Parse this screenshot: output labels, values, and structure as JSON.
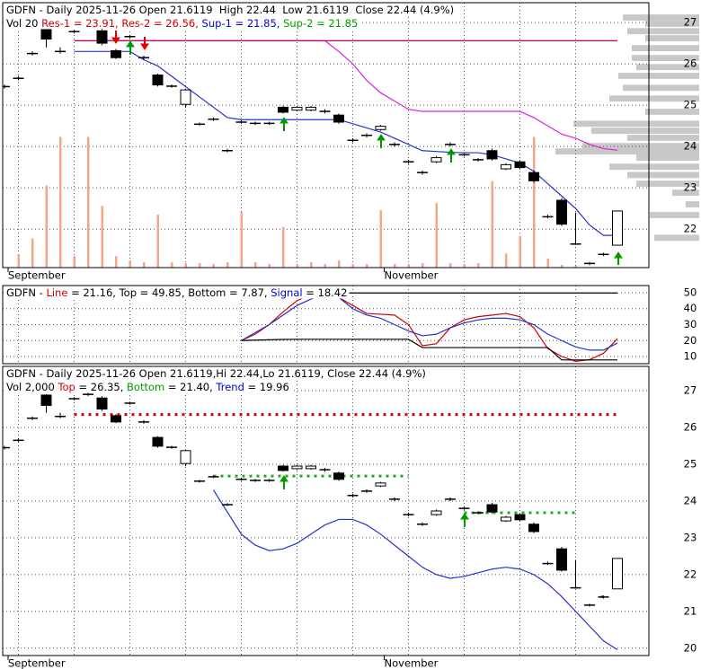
{
  "chart_data": [
    {
      "type": "candlestick",
      "legend": [
        [
          {
            "text": "GDFN - Daily 2025-11-26 Open 21.6119  High 22.44  Low 21.6119  Close 22.44 (4.9%)",
            "color": "#000000"
          }
        ],
        [
          {
            "text": "Vol 20 ",
            "color": "#000000"
          },
          {
            "text": "Res-1 = 23.91, ",
            "color": "#cc0000"
          },
          {
            "text": "Res-2 = 26.56, ",
            "color": "#cc0000"
          },
          {
            "text": "Sup-1 = 21.85, ",
            "color": "#0000cc"
          },
          {
            "text": "Sup-2 = 21.85",
            "color": "#009900"
          }
        ]
      ],
      "categories": [
        "September",
        null,
        null,
        null,
        null,
        null,
        null,
        null,
        null,
        null,
        null,
        null,
        null,
        null,
        null,
        null,
        null,
        null,
        null,
        null,
        null,
        null,
        null,
        null,
        null,
        null,
        null,
        "November",
        null,
        null,
        null,
        null,
        null,
        null,
        null,
        null,
        null,
        null,
        null,
        null,
        null,
        null,
        null,
        null,
        null
      ],
      "open": [
        25.45,
        25.65,
        26.25,
        26.88,
        26.3,
        26.78,
        26.9,
        26.8,
        26.32,
        26.66,
        26.15,
        25.73,
        25.46,
        25.02,
        24.54,
        24.66,
        23.9,
        24.59,
        24.56,
        24.56,
        24.95,
        24.88,
        24.88,
        24.85,
        24.76,
        24.15,
        24.27,
        24.41,
        24.05,
        23.63,
        23.37,
        23.63,
        24.05,
        23.8,
        23.68,
        23.9,
        23.46,
        23.63,
        23.37,
        22.3,
        22.7,
        21.64,
        21.17,
        21.39,
        21.6119
      ],
      "high": [
        25.5,
        25.7,
        26.3,
        26.9,
        26.4,
        26.82,
        26.95,
        26.85,
        26.36,
        26.7,
        26.2,
        25.76,
        25.5,
        25.4,
        24.58,
        24.7,
        23.94,
        24.63,
        24.6,
        24.6,
        24.98,
        24.98,
        24.98,
        24.9,
        24.8,
        24.2,
        24.32,
        24.52,
        24.1,
        23.68,
        23.42,
        23.77,
        24.1,
        23.84,
        23.72,
        23.95,
        23.6,
        23.67,
        23.42,
        22.35,
        22.75,
        22.4,
        21.21,
        21.43,
        22.44
      ],
      "low": [
        25.4,
        25.6,
        26.2,
        26.4,
        26.25,
        26.74,
        26.85,
        26.45,
        26.12,
        26.62,
        26.1,
        25.45,
        25.42,
        24.95,
        24.5,
        24.62,
        23.86,
        24.55,
        24.52,
        24.52,
        24.8,
        24.85,
        24.85,
        24.8,
        24.55,
        24.1,
        24.22,
        24.38,
        24.0,
        23.58,
        23.32,
        23.6,
        24.0,
        23.76,
        23.64,
        23.66,
        23.43,
        23.45,
        23.13,
        22.26,
        22.08,
        21.62,
        21.13,
        21.35,
        21.6119
      ],
      "close": [
        25.45,
        25.65,
        26.25,
        26.6,
        26.3,
        26.78,
        26.9,
        26.5,
        26.15,
        26.66,
        26.15,
        25.49,
        25.46,
        25.37,
        24.54,
        24.66,
        23.9,
        24.59,
        24.56,
        24.56,
        24.83,
        24.95,
        24.95,
        24.85,
        24.59,
        24.15,
        24.27,
        24.49,
        24.05,
        23.63,
        23.37,
        23.73,
        24.05,
        23.8,
        23.68,
        23.7,
        23.56,
        23.49,
        23.17,
        22.3,
        22.12,
        21.64,
        21.17,
        21.39,
        22.44
      ],
      "volume": [
        0,
        15,
        33,
        93,
        148,
        13,
        148,
        70,
        13,
        8,
        6,
        60,
        6,
        5,
        5,
        4,
        6,
        63,
        6,
        4,
        46,
        4,
        6,
        4,
        8,
        4,
        4,
        65,
        4,
        4,
        5,
        73,
        5,
        4,
        5,
        98,
        16,
        36,
        148,
        10,
        3,
        2,
        0,
        0,
        0
      ],
      "vlim": [
        0,
        300
      ],
      "volume_color": "#f4a58a",
      "series": [
        {
          "color": "#2233cc",
          "values": [
            null,
            null,
            null,
            null,
            null,
            26.3,
            26.3,
            26.3,
            26.3,
            26.3,
            26.1,
            25.95,
            25.7,
            25.45,
            25.2,
            24.95,
            24.7,
            24.65,
            24.65,
            24.65,
            24.65,
            24.65,
            24.65,
            24.65,
            24.65,
            24.55,
            24.45,
            24.35,
            24.2,
            24.05,
            23.9,
            23.88,
            23.86,
            23.85,
            23.85,
            23.8,
            23.7,
            23.6,
            23.4,
            23.1,
            22.8,
            22.5,
            22.1,
            21.85,
            21.85
          ]
        },
        {
          "name": "Res-1",
          "color": "#dd22dd",
          "values": [
            null,
            null,
            null,
            null,
            null,
            26.56,
            26.56,
            26.56,
            26.56,
            26.56,
            26.56,
            26.56,
            26.56,
            26.56,
            26.56,
            26.56,
            26.56,
            26.56,
            26.56,
            26.56,
            26.56,
            26.56,
            26.56,
            26.56,
            26.3,
            26.0,
            25.6,
            25.3,
            25.1,
            24.9,
            24.85,
            24.85,
            24.85,
            24.85,
            24.85,
            24.85,
            24.85,
            24.85,
            24.7,
            24.5,
            24.3,
            24.2,
            24.05,
            23.95,
            23.91
          ]
        },
        {
          "name": "Res-2",
          "color": "#cc0055",
          "values": [
            null,
            null,
            null,
            null,
            null,
            26.56,
            26.56,
            26.56,
            26.56,
            26.56,
            26.56,
            26.56,
            26.56,
            26.56,
            26.56,
            26.56,
            26.56,
            26.56,
            26.56,
            26.56,
            26.56,
            26.56,
            26.56,
            26.56,
            26.56,
            26.56,
            26.56,
            26.56,
            26.56,
            26.56,
            26.56,
            26.56,
            26.56,
            26.56,
            26.56,
            26.56,
            26.56,
            26.56,
            26.56,
            26.56,
            26.56,
            26.56,
            26.56,
            26.56,
            26.56
          ]
        }
      ],
      "profile": {
        "color": "#c8c8c8",
        "prices": [
          27.11,
          26.96,
          26.78,
          26.61,
          26.37,
          26.13,
          25.91,
          25.7,
          25.41,
          25.15,
          24.83,
          24.54,
          24.37,
          24.2,
          24.0,
          23.87,
          23.72,
          23.5,
          23.3,
          23.09,
          22.87,
          22.59,
          22.33,
          21.78
        ],
        "values": [
          85,
          60,
          80,
          60,
          75,
          75,
          70,
          90,
          85,
          100,
          60,
          140,
          120,
          80,
          130,
          160,
          70,
          100,
          80,
          70,
          30,
          15,
          55,
          50
        ]
      },
      "ylim": [
        21.07,
        27.48
      ],
      "yticks": [
        22,
        23,
        24,
        25,
        26,
        27
      ],
      "grid": true
    },
    {
      "type": "line",
      "legend": [
        [
          {
            "text": "GDFN - ",
            "color": "#000000"
          },
          {
            "text": "Line",
            "color": "#cc0000"
          },
          {
            "text": " = 21.16, Top = 49.85, Bottom = 7.87, ",
            "color": "#000000"
          },
          {
            "text": "Signal",
            "color": "#0000cc"
          },
          {
            "text": " = 18.42",
            "color": "#000000"
          }
        ]
      ],
      "series": [
        {
          "name": "Line",
          "color": "#cc0000",
          "values": [
            null,
            null,
            null,
            null,
            null,
            null,
            null,
            null,
            null,
            null,
            null,
            null,
            null,
            null,
            null,
            null,
            null,
            20,
            24,
            30,
            38,
            45,
            49,
            50,
            47,
            42,
            37,
            36.5,
            36,
            30,
            16.8,
            18,
            28,
            33,
            35,
            36,
            37,
            35,
            28,
            15,
            10,
            7,
            8,
            12,
            21.16
          ]
        },
        {
          "name": "Signal",
          "color": "#2233cc",
          "values": [
            null,
            null,
            null,
            null,
            null,
            null,
            null,
            null,
            null,
            null,
            null,
            null,
            null,
            null,
            null,
            null,
            null,
            20,
            25,
            30,
            36,
            42,
            46,
            49,
            47,
            40,
            36,
            34,
            30,
            26,
            23,
            24,
            28,
            31,
            33,
            34,
            34,
            33,
            30,
            24,
            20,
            16,
            14,
            14,
            18.42
          ]
        },
        {
          "name": "Top",
          "color": "#000000",
          "values": [
            null,
            null,
            null,
            null,
            null,
            null,
            null,
            null,
            null,
            null,
            null,
            null,
            null,
            null,
            null,
            null,
            null,
            null,
            null,
            null,
            null,
            null,
            49.85,
            49.85,
            49.85,
            49.85,
            49.85,
            49.85,
            49.85,
            49.85,
            49.85,
            49.85,
            49.85,
            49.85,
            49.85,
            49.85,
            49.85,
            49.85,
            49.85,
            49.85,
            49.85,
            49.85,
            49.85,
            49.85,
            49.85
          ]
        },
        {
          "name": "Bottom",
          "color": "#000000",
          "values": [
            null,
            null,
            null,
            null,
            null,
            null,
            null,
            null,
            null,
            null,
            null,
            null,
            null,
            null,
            null,
            null,
            null,
            20,
            20.3,
            20.5,
            20.7,
            20.8,
            20.8,
            20.8,
            20.8,
            20.8,
            20.8,
            20.8,
            20.8,
            20.8,
            15.6,
            15.6,
            15.6,
            15.6,
            15.6,
            15.6,
            15.6,
            15.6,
            15.6,
            15.6,
            7.87,
            7.87,
            7.87,
            7.87,
            7.87
          ]
        }
      ],
      "ylim": [
        5.5,
        54.5
      ],
      "yticks": [
        10,
        20,
        30,
        40,
        50
      ],
      "grid": true
    },
    {
      "type": "candlestick",
      "legend": [
        [
          {
            "text": "GDFN - Daily 2025-11-26 Open 21.6119,Hi 22.44,Lo 21.6119, Close 22.44 (4.9%)",
            "color": "#000000"
          }
        ],
        [
          {
            "text": "Vol 2,000 ",
            "color": "#000000"
          },
          {
            "text": "Top",
            "color": "#cc0000"
          },
          {
            "text": " = 26.35, ",
            "color": "#000000"
          },
          {
            "text": "Bottom",
            "color": "#009900"
          },
          {
            "text": " = 21.40, ",
            "color": "#000000"
          },
          {
            "text": "Trend",
            "color": "#0000cc"
          },
          {
            "text": " = 19.96",
            "color": "#000000"
          }
        ]
      ],
      "series": [
        {
          "name": "Top",
          "color": "#dd0000",
          "style": "dotted",
          "values": [
            null,
            null,
            null,
            null,
            null,
            26.35,
            26.35,
            26.35,
            26.35,
            26.35,
            26.35,
            26.35,
            26.35,
            26.35,
            26.35,
            26.35,
            26.35,
            26.35,
            26.35,
            26.35,
            26.35,
            26.35,
            26.35,
            26.35,
            26.35,
            26.35,
            26.35,
            26.35,
            26.35,
            26.35,
            26.35,
            26.35,
            26.35,
            26.35,
            26.35,
            26.35,
            26.35,
            26.35,
            26.35,
            26.35,
            26.35,
            26.35,
            26.35,
            26.35,
            26.35
          ]
        },
        {
          "name": "Bottom",
          "color": "#22aa22",
          "style": "dotted",
          "values": [
            null,
            null,
            null,
            null,
            null,
            null,
            null,
            null,
            null,
            null,
            null,
            null,
            null,
            null,
            null,
            24.68,
            24.68,
            24.68,
            24.68,
            24.68,
            24.68,
            24.68,
            24.68,
            24.68,
            24.68,
            24.68,
            24.68,
            24.68,
            24.68,
            24.68,
            null,
            null,
            null,
            23.68,
            23.68,
            23.68,
            23.68,
            23.68,
            23.68,
            23.68,
            23.68,
            23.68,
            null,
            21.4,
            null
          ]
        },
        {
          "name": "Trend",
          "color": "#2233cc",
          "style": "solid",
          "values": [
            null,
            null,
            null,
            null,
            null,
            null,
            null,
            null,
            null,
            null,
            null,
            null,
            null,
            null,
            null,
            24.3,
            23.7,
            23.1,
            22.8,
            22.65,
            22.7,
            22.85,
            23.1,
            23.35,
            23.5,
            23.5,
            23.35,
            23.1,
            22.8,
            22.5,
            22.2,
            22.0,
            21.9,
            21.95,
            22.05,
            22.15,
            22.2,
            22.15,
            22.0,
            21.75,
            21.4,
            21.0,
            20.6,
            20.2,
            19.96
          ]
        }
      ],
      "ylim": [
        19.8,
        27.66
      ],
      "yticks": [
        20,
        21,
        22,
        23,
        24,
        25,
        26,
        27
      ],
      "grid": true
    }
  ]
}
